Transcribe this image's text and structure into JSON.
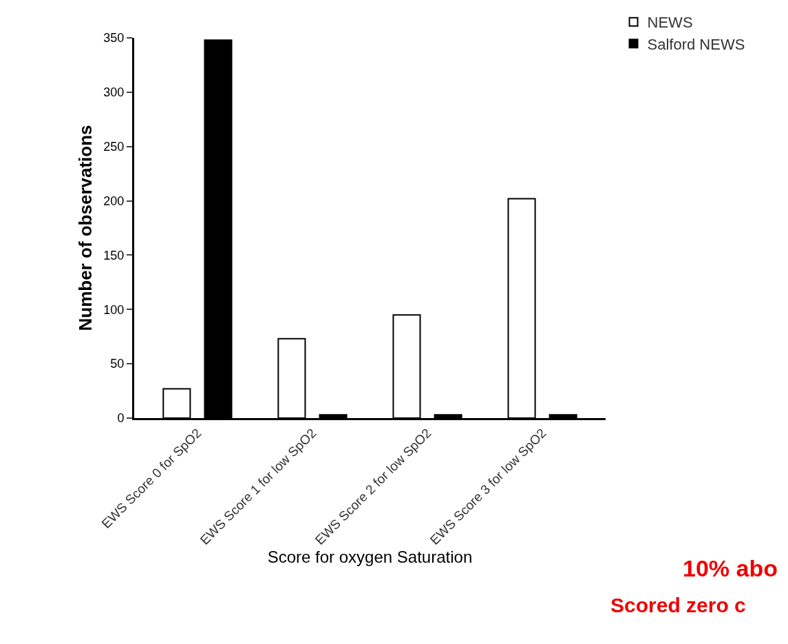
{
  "chart_data": {
    "type": "bar",
    "xlabel": "Score for oxygen Saturation",
    "ylabel": "Number of observations",
    "categories": [
      "EWS Score 0 for SpO2",
      "EWS Score 1 for low SpO2",
      "EWS Score 2 for low SpO2",
      "EWS Score 3 for low SpO2"
    ],
    "series": [
      {
        "name": "NEWS",
        "color": "#ffffff",
        "values": [
          27,
          73,
          95,
          202
        ]
      },
      {
        "name": "Salford NEWS",
        "color": "#000000",
        "values": [
          348,
          3,
          3,
          3
        ]
      }
    ],
    "ylim": [
      0,
      350
    ],
    "yticks": [
      0,
      50,
      100,
      150,
      200,
      250,
      300,
      350
    ],
    "legend": "top right",
    "annotations": [
      "10% abo",
      "Scored zero c"
    ]
  }
}
